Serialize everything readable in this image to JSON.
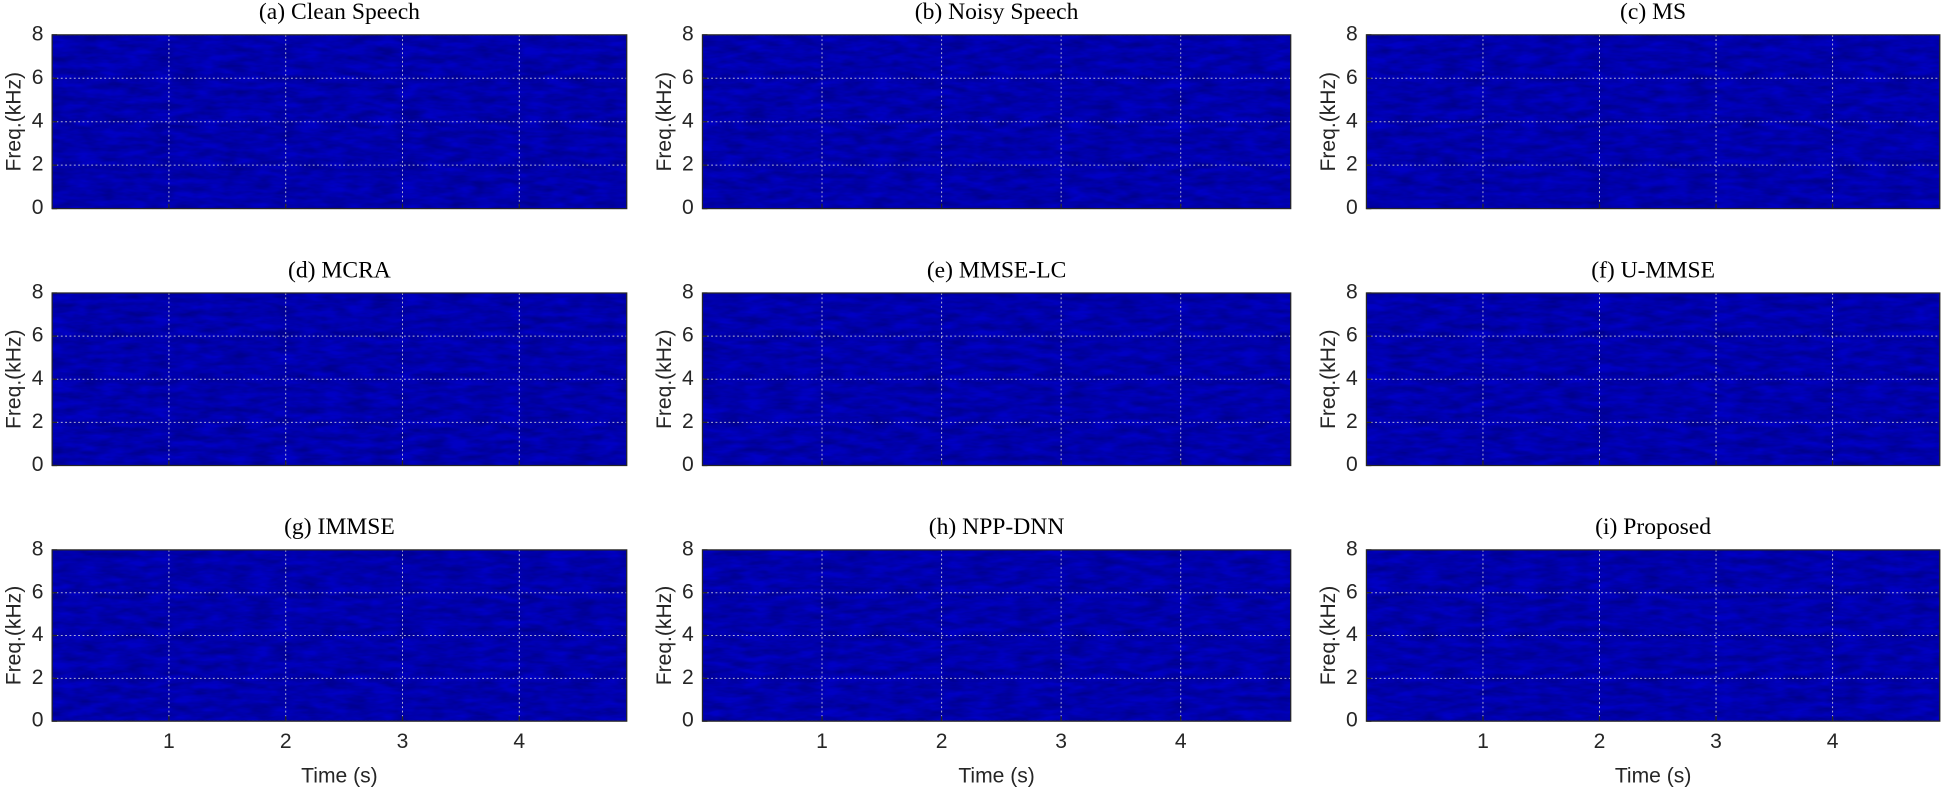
{
  "chart_data": [
    {
      "type": "spectrogram",
      "title": "(a) Clean Speech",
      "ylabel": "Freq.(kHz)",
      "xlim": [
        0,
        4.92
      ],
      "ylim": [
        0,
        8
      ],
      "xticks": [
        1,
        2,
        3,
        4
      ],
      "yticks": [
        0,
        2,
        4,
        6,
        8
      ],
      "grid": true
    },
    {
      "type": "spectrogram",
      "title": "(b) Noisy Speech",
      "ylabel": "Freq.(kHz)",
      "xlim": [
        0,
        4.92
      ],
      "ylim": [
        0,
        8
      ],
      "xticks": [
        1,
        2,
        3,
        4
      ],
      "yticks": [
        0,
        2,
        4,
        6,
        8
      ],
      "grid": true
    },
    {
      "type": "spectrogram",
      "title": "(c) MS",
      "ylabel": "Freq.(kHz)",
      "xlim": [
        0,
        4.92
      ],
      "ylim": [
        0,
        8
      ],
      "xticks": [
        1,
        2,
        3,
        4
      ],
      "yticks": [
        0,
        2,
        4,
        6,
        8
      ],
      "grid": true
    },
    {
      "type": "spectrogram",
      "title": "(d) MCRA",
      "ylabel": "Freq.(kHz)",
      "xlim": [
        0,
        4.92
      ],
      "ylim": [
        0,
        8
      ],
      "xticks": [
        1,
        2,
        3,
        4
      ],
      "yticks": [
        0,
        2,
        4,
        6,
        8
      ],
      "grid": true
    },
    {
      "type": "spectrogram",
      "title": "(e) MMSE-LC",
      "ylabel": "Freq.(kHz)",
      "xlim": [
        0,
        4.92
      ],
      "ylim": [
        0,
        8
      ],
      "xticks": [
        1,
        2,
        3,
        4
      ],
      "yticks": [
        0,
        2,
        4,
        6,
        8
      ],
      "grid": true
    },
    {
      "type": "spectrogram",
      "title": "(f) U-MMSE",
      "ylabel": "Freq.(kHz)",
      "xlim": [
        0,
        4.92
      ],
      "ylim": [
        0,
        8
      ],
      "xticks": [
        1,
        2,
        3,
        4
      ],
      "yticks": [
        0,
        2,
        4,
        6,
        8
      ],
      "grid": true
    },
    {
      "type": "spectrogram",
      "title": "(g) IMMSE",
      "ylabel": "Freq.(kHz)",
      "xlabel": "Time (s)",
      "xlim": [
        0,
        4.92
      ],
      "ylim": [
        0,
        8
      ],
      "xticks": [
        1,
        2,
        3,
        4
      ],
      "yticks": [
        0,
        2,
        4,
        6,
        8
      ],
      "grid": true
    },
    {
      "type": "spectrogram",
      "title": "(h) NPP-DNN",
      "ylabel": "Freq.(kHz)",
      "xlabel": "Time (s)",
      "xlim": [
        0,
        4.92
      ],
      "ylim": [
        0,
        8
      ],
      "xticks": [
        1,
        2,
        3,
        4
      ],
      "yticks": [
        0,
        2,
        4,
        6,
        8
      ],
      "grid": true
    },
    {
      "type": "spectrogram",
      "title": "(i) Proposed",
      "ylabel": "Freq.(kHz)",
      "xlabel": "Time (s)",
      "xlim": [
        0,
        4.92
      ],
      "ylim": [
        0,
        8
      ],
      "xticks": [
        1,
        2,
        3,
        4
      ],
      "yticks": [
        0,
        2,
        4,
        6,
        8
      ],
      "grid": true
    }
  ]
}
